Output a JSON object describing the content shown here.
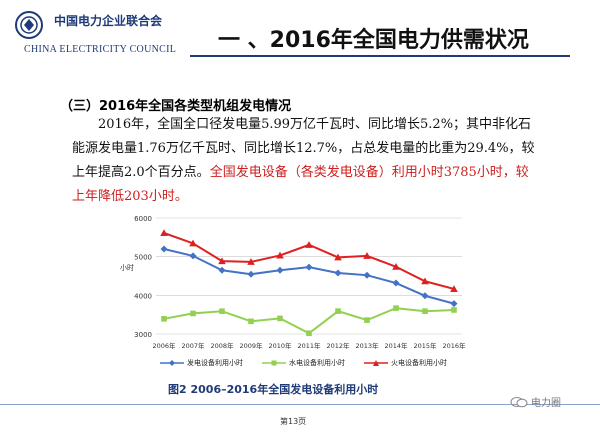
{
  "header": {
    "org_cn": "中国电力企业联合会",
    "org_en": "CHINA ELECTRICITY COUNCIL",
    "slide_title": "一 、2016年全国电力供需状况"
  },
  "section": {
    "title": "（三）2016年全国各类型机组发电情况",
    "para_black": "2016年，全国全口径发电量5.99万亿千瓦时、同比增长5.2%；其中非化石能源发电量1.76万亿千瓦时、同比增长12.7%，占总发电量的比重为29.4%，较上年提高2.0个百分点。",
    "para_red": "全国发电设备（各类发电设备）利用小时3785小时，较上年降低203小时。"
  },
  "chart_data": {
    "type": "line",
    "title": "",
    "xlabel": "",
    "ylabel": "小时",
    "ylim": [
      3000,
      6000
    ],
    "yticks": [
      "6000",
      "5000",
      "4000",
      "3000"
    ],
    "categories": [
      "2006年",
      "2007年",
      "2008年",
      "2009年",
      "2010年",
      "2011年",
      "2012年",
      "2013年",
      "2014年",
      "2015年",
      "2016年"
    ],
    "series": [
      {
        "name": "发电设备利用小时",
        "color": "#4472c4",
        "marker": "diamond",
        "values": [
          5198,
          5020,
          4648,
          4546,
          4650,
          4730,
          4579,
          4521,
          4318,
          3988,
          3785
        ]
      },
      {
        "name": "水电设备利用小时",
        "color": "#92d050",
        "marker": "square",
        "values": [
          3393,
          3532,
          3589,
          3328,
          3404,
          3019,
          3591,
          3359,
          3669,
          3590,
          3621
        ]
      },
      {
        "name": "火电设备利用小时",
        "color": "#e02020",
        "marker": "triangle",
        "values": [
          5612,
          5344,
          4885,
          4865,
          5031,
          5305,
          4982,
          5021,
          4739,
          4364,
          4165
        ]
      }
    ],
    "caption": "图2   2006–2016年全国发电设备利用小时"
  },
  "footer": {
    "page": "第13页",
    "watermark": "电力圈"
  },
  "colors": {
    "brand": "#1f3a78",
    "highlight": "#cc1f1f"
  }
}
